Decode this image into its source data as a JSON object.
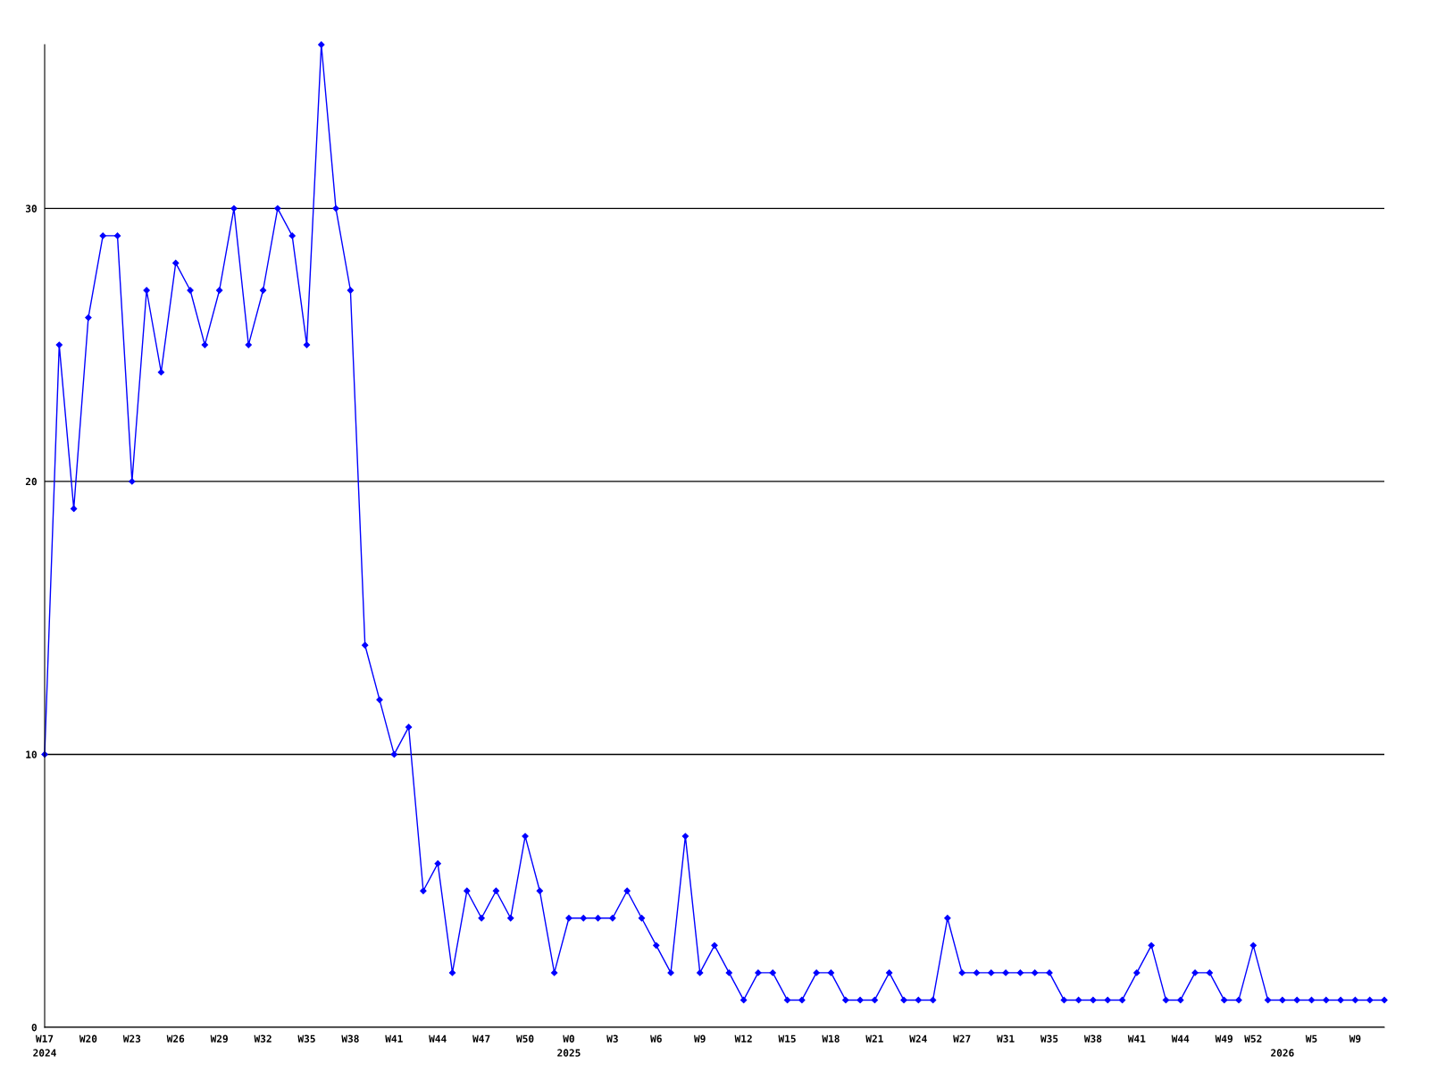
{
  "chart_data": {
    "type": "line",
    "categories": [
      "W17\n2024",
      null,
      null,
      "W20",
      null,
      null,
      "W23",
      null,
      null,
      "W26",
      null,
      null,
      "W29",
      null,
      null,
      "W32",
      null,
      null,
      "W35",
      null,
      null,
      "W38",
      null,
      null,
      "W41",
      null,
      null,
      "W44",
      null,
      null,
      "W47",
      null,
      null,
      "W50",
      null,
      null,
      "W0\n2025",
      null,
      null,
      "W3",
      null,
      null,
      "W6",
      null,
      null,
      "W9",
      null,
      null,
      "W12",
      null,
      null,
      "W15",
      null,
      null,
      "W18",
      null,
      null,
      "W21",
      null,
      null,
      "W24",
      null,
      null,
      "W27",
      null,
      null,
      "W31",
      null,
      null,
      "W35",
      null,
      null,
      "W38",
      null,
      null,
      "W41",
      null,
      null,
      "W44",
      null,
      null,
      "W49",
      null,
      "W52",
      null,
      "\n2026",
      null,
      "W5",
      null,
      null,
      "W9",
      null,
      null
    ],
    "series": [
      {
        "color": "#0000ff",
        "values": [
          10,
          25,
          19,
          26,
          29,
          29,
          20,
          27,
          24,
          28,
          27,
          25,
          27,
          30,
          25,
          27,
          30,
          29,
          25,
          36,
          30,
          27,
          14,
          12,
          10,
          11,
          5,
          6,
          2,
          5,
          4,
          5,
          4,
          7,
          5,
          2,
          4,
          4,
          4,
          4,
          5,
          4,
          3,
          2,
          7,
          2,
          3,
          2,
          1,
          2,
          2,
          1,
          1,
          2,
          2,
          1,
          1,
          1,
          2,
          1,
          1,
          1,
          4,
          2,
          2,
          2,
          2,
          2,
          2,
          2,
          1,
          1,
          1,
          1,
          1,
          2,
          3,
          1,
          1,
          2,
          2,
          1,
          1,
          3,
          1,
          1,
          1,
          1,
          1,
          1,
          1,
          1,
          1
        ]
      }
    ],
    "ylim": [
      0,
      36
    ],
    "yticks": [
      0,
      10,
      20,
      30
    ],
    "grid": "y",
    "marker": "diamond",
    "line_style": "solid"
  }
}
